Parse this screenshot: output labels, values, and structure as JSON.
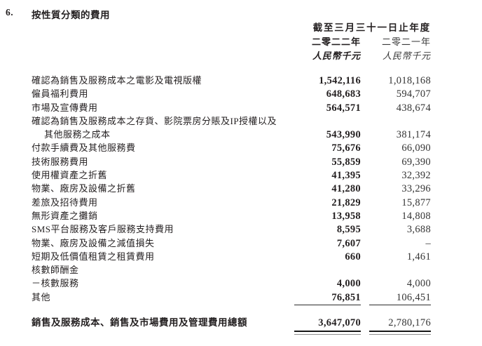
{
  "section": {
    "number": "6.",
    "title": "按性質分類的費用"
  },
  "table": {
    "period_header": "截至三月三十一日止年度",
    "columns": {
      "year_2022": "二零二二年",
      "year_2021": "二零二一年",
      "unit_2022": "人民幣千元",
      "unit_2021": "人民幣千元"
    },
    "rows": [
      {
        "label": "確認為銷售及服務成本之電影及電視版權",
        "v2022": "1,542,116",
        "v2021": "1,018,168"
      },
      {
        "label": "僱員福利費用",
        "v2022": "648,683",
        "v2021": "594,707"
      },
      {
        "label": "市場及宣傳費用",
        "v2022": "564,571",
        "v2021": "438,674"
      },
      {
        "label": "確認為銷售及服務成本之存貨、影院票房分賬及IP授權以及",
        "v2022": "",
        "v2021": ""
      },
      {
        "label": "其他服務之成本",
        "indent": true,
        "v2022": "543,990",
        "v2021": "381,174"
      },
      {
        "label": "付款手續費及其他服務費",
        "v2022": "75,676",
        "v2021": "66,090"
      },
      {
        "label": "技術服務費用",
        "v2022": "55,859",
        "v2021": "69,390"
      },
      {
        "label": "使用權資產之折舊",
        "v2022": "41,395",
        "v2021": "32,392"
      },
      {
        "label": "物業、廠房及設備之折舊",
        "v2022": "41,280",
        "v2021": "33,296"
      },
      {
        "label": "差旅及招待費用",
        "v2022": "21,829",
        "v2021": "15,877"
      },
      {
        "label": "無形資產之攤銷",
        "v2022": "13,958",
        "v2021": "14,808"
      },
      {
        "label": "SMS平台服務及客戶服務支持費用",
        "v2022": "8,595",
        "v2021": "3,688"
      },
      {
        "label": "物業、廠房及設備之減值損失",
        "v2022": "7,607",
        "v2021": "–"
      },
      {
        "label": "短期及低價值租賃之租賃費用",
        "v2022": "660",
        "v2021": "1,461"
      },
      {
        "label": "核數師酬金",
        "v2022": "",
        "v2021": ""
      },
      {
        "label": "－核數服務",
        "v2022": "4,000",
        "v2021": "4,000"
      },
      {
        "label": "其他",
        "v2022": "76,851",
        "v2021": "106,451",
        "rule_below": true
      }
    ],
    "total": {
      "label": "銷售及服務成本、銷售及市場費用及管理費用總額",
      "v2022": "3,647,070",
      "v2021": "2,780,176"
    }
  },
  "colors": {
    "text": "#231f20",
    "rule": "#2b2b2b",
    "double_rule_top": "#161616",
    "double_rule_bottom": "#8f8f8f",
    "background": "#ffffff"
  }
}
